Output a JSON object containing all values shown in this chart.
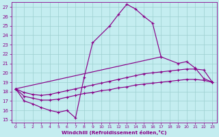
{
  "xlabel": "Windchill (Refroidissement éolien,°C)",
  "bg_color": "#c4edf0",
  "line_color": "#880088",
  "grid_color": "#9dcfcf",
  "xlim": [
    -0.5,
    23.5
  ],
  "ylim": [
    14.7,
    27.5
  ],
  "xticks": [
    0,
    1,
    2,
    3,
    4,
    5,
    6,
    7,
    8,
    9,
    10,
    11,
    12,
    13,
    14,
    15,
    16,
    17,
    18,
    19,
    20,
    21,
    22,
    23
  ],
  "yticks": [
    15,
    16,
    17,
    18,
    19,
    20,
    21,
    22,
    23,
    24,
    25,
    26,
    27
  ],
  "lines": [
    {
      "x": [
        0,
        1,
        2,
        3,
        4,
        5,
        6,
        7,
        8,
        9,
        11,
        12,
        13,
        14,
        15,
        16,
        17
      ],
      "y": [
        18.3,
        17.0,
        16.7,
        16.3,
        16.0,
        15.8,
        16.0,
        15.2,
        19.5,
        23.2,
        25.0,
        26.2,
        27.3,
        26.8,
        26.0,
        25.3,
        21.7
      ]
    },
    {
      "x": [
        0,
        17,
        19,
        20,
        21,
        22,
        23
      ],
      "y": [
        18.3,
        21.7,
        21.0,
        21.2,
        20.5,
        19.4,
        19.0
      ]
    },
    {
      "x": [
        0,
        1,
        2,
        3,
        4,
        5,
        6,
        7,
        8,
        9,
        10,
        11,
        12,
        13,
        14,
        15,
        16,
        17,
        18,
        19,
        20,
        21,
        22,
        23
      ],
      "y": [
        18.3,
        17.9,
        17.7,
        17.6,
        17.7,
        17.9,
        18.1,
        18.3,
        18.5,
        18.7,
        18.9,
        19.1,
        19.3,
        19.5,
        19.7,
        19.9,
        20.0,
        20.1,
        20.2,
        20.3,
        20.4,
        20.4,
        20.3,
        19.0
      ]
    },
    {
      "x": [
        0,
        1,
        2,
        3,
        4,
        5,
        6,
        7,
        8,
        9,
        10,
        11,
        12,
        13,
        14,
        15,
        16,
        17,
        18,
        19,
        20,
        21,
        22,
        23
      ],
      "y": [
        18.3,
        17.5,
        17.3,
        17.1,
        17.1,
        17.2,
        17.4,
        17.6,
        17.8,
        17.9,
        18.1,
        18.2,
        18.4,
        18.5,
        18.7,
        18.8,
        18.9,
        19.0,
        19.1,
        19.2,
        19.3,
        19.3,
        19.2,
        19.0
      ]
    }
  ]
}
